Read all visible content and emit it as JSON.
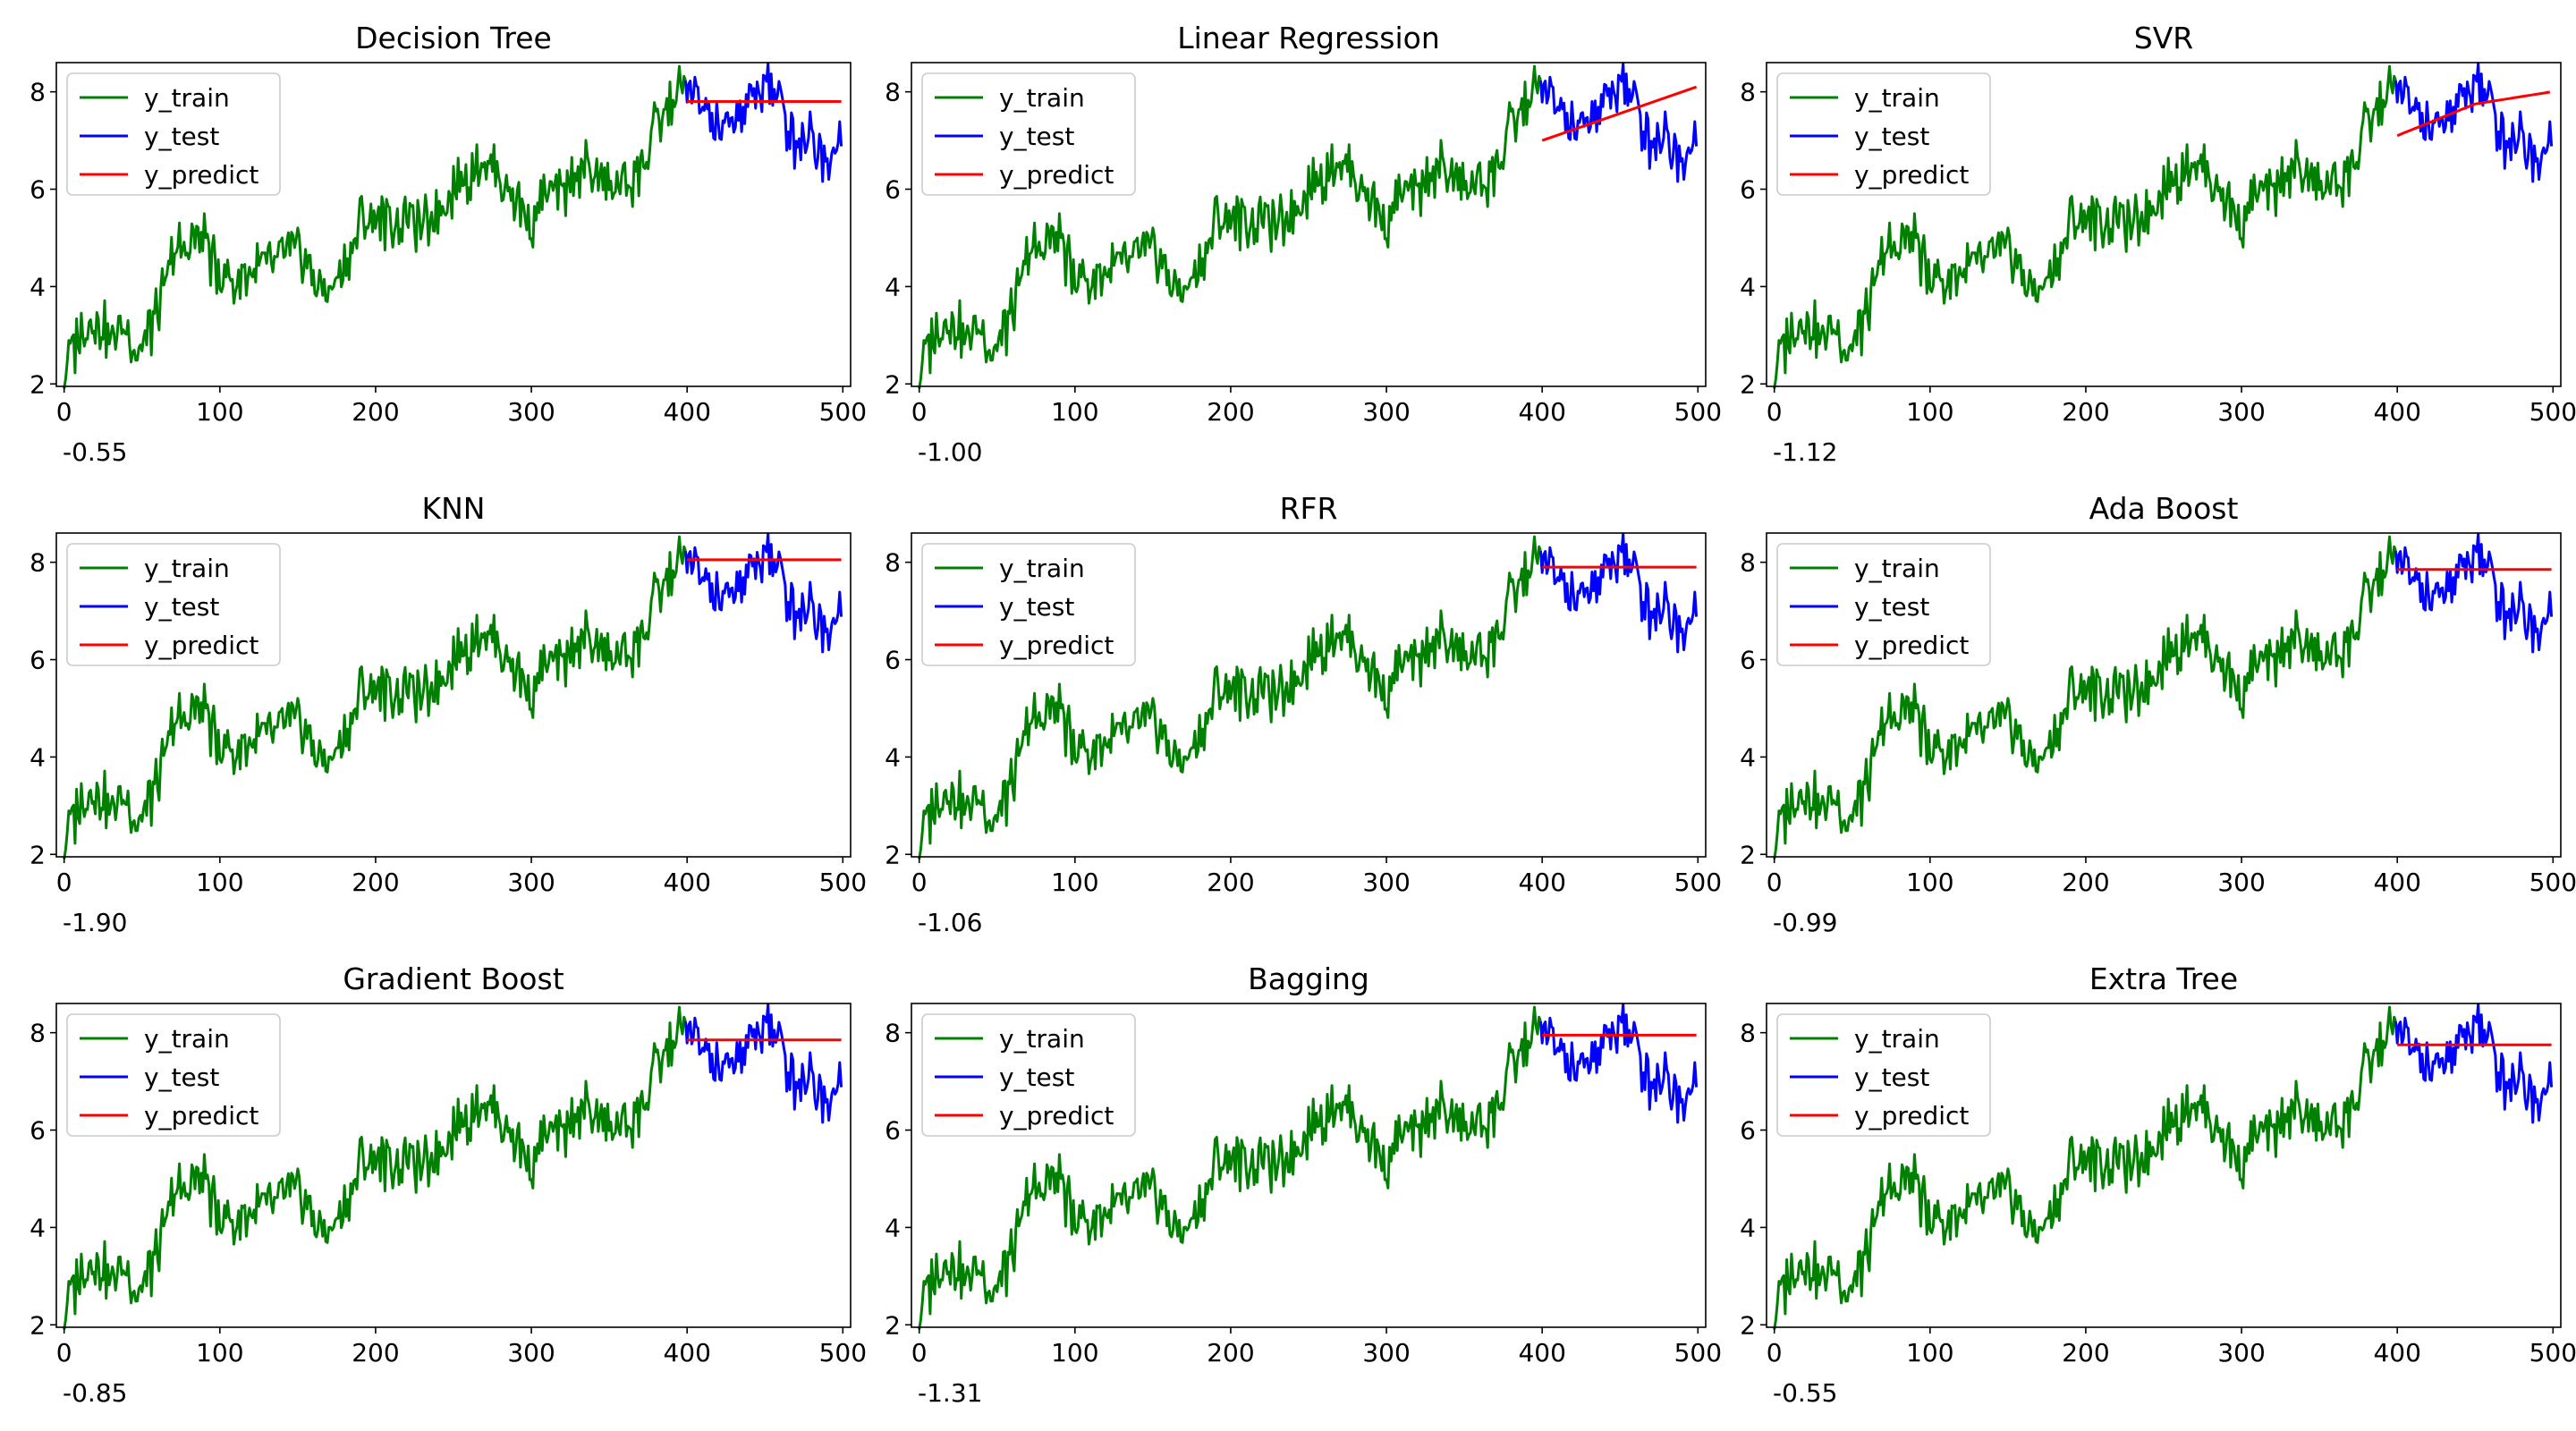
{
  "figure": {
    "series_colors": {
      "y_train": "#008000",
      "y_test": "#0000ff",
      "y_predict": "#ff0000"
    }
  },
  "chart_data": [
    {
      "type": "line",
      "title": "Decision Tree",
      "score": "-0.55",
      "xlim": [
        -5,
        505
      ],
      "ylim": [
        1.95,
        8.6
      ],
      "xticks": [
        0,
        100,
        200,
        300,
        400,
        500
      ],
      "yticks": [
        2,
        4,
        6,
        8
      ],
      "legend": {
        "placement": "upper-left",
        "entries": [
          "y_train",
          "y_test",
          "y_predict"
        ]
      },
      "grid": false,
      "series": [
        {
          "name": "y_train",
          "x_range": [
            0,
            399
          ],
          "description_points": "random walk"
        },
        {
          "name": "y_test",
          "x_range": [
            400,
            499
          ]
        },
        {
          "name": "y_predict",
          "x": [
            400,
            499
          ],
          "values": [
            7.8,
            7.8
          ]
        }
      ]
    },
    {
      "type": "line",
      "title": "Linear Regression",
      "score": "-1.00",
      "xlim": [
        -5,
        505
      ],
      "ylim": [
        1.95,
        8.6
      ],
      "xticks": [
        0,
        100,
        200,
        300,
        400,
        500
      ],
      "yticks": [
        2,
        4,
        6,
        8
      ],
      "legend": {
        "placement": "upper-left",
        "entries": [
          "y_train",
          "y_test",
          "y_predict"
        ]
      },
      "grid": false,
      "series": [
        {
          "name": "y_train",
          "x_range": [
            0,
            399
          ]
        },
        {
          "name": "y_test",
          "x_range": [
            400,
            499
          ]
        },
        {
          "name": "y_predict",
          "x": [
            400,
            499
          ],
          "values": [
            7.0,
            8.1
          ]
        }
      ]
    },
    {
      "type": "line",
      "title": "SVR",
      "score": "-1.12",
      "xlim": [
        -5,
        505
      ],
      "ylim": [
        1.95,
        8.6
      ],
      "xticks": [
        0,
        100,
        200,
        300,
        400,
        500
      ],
      "yticks": [
        2,
        4,
        6,
        8
      ],
      "legend": {
        "placement": "upper-left",
        "entries": [
          "y_train",
          "y_test",
          "y_predict"
        ]
      },
      "grid": false,
      "series": [
        {
          "name": "y_train",
          "x_range": [
            0,
            399
          ]
        },
        {
          "name": "y_test",
          "x_range": [
            400,
            499
          ]
        },
        {
          "name": "y_predict",
          "x": [
            400,
            450,
            499
          ],
          "values": [
            7.1,
            7.75,
            8.0
          ]
        }
      ]
    },
    {
      "type": "line",
      "title": "KNN",
      "score": "-1.90",
      "xlim": [
        -5,
        505
      ],
      "ylim": [
        1.95,
        8.6
      ],
      "xticks": [
        0,
        100,
        200,
        300,
        400,
        500
      ],
      "yticks": [
        2,
        4,
        6,
        8
      ],
      "legend": {
        "placement": "upper-left",
        "entries": [
          "y_train",
          "y_test",
          "y_predict"
        ]
      },
      "grid": false,
      "series": [
        {
          "name": "y_train",
          "x_range": [
            0,
            399
          ]
        },
        {
          "name": "y_test",
          "x_range": [
            400,
            499
          ]
        },
        {
          "name": "y_predict",
          "x": [
            400,
            499
          ],
          "values": [
            8.05,
            8.05
          ]
        }
      ]
    },
    {
      "type": "line",
      "title": "RFR",
      "score": "-1.06",
      "xlim": [
        -5,
        505
      ],
      "ylim": [
        1.95,
        8.6
      ],
      "xticks": [
        0,
        100,
        200,
        300,
        400,
        500
      ],
      "yticks": [
        2,
        4,
        6,
        8
      ],
      "legend": {
        "placement": "upper-left",
        "entries": [
          "y_train",
          "y_test",
          "y_predict"
        ]
      },
      "grid": false,
      "series": [
        {
          "name": "y_train",
          "x_range": [
            0,
            399
          ]
        },
        {
          "name": "y_test",
          "x_range": [
            400,
            499
          ]
        },
        {
          "name": "y_predict",
          "x": [
            400,
            499
          ],
          "values": [
            7.9,
            7.9
          ]
        }
      ]
    },
    {
      "type": "line",
      "title": "Ada Boost",
      "score": "-0.99",
      "xlim": [
        -5,
        505
      ],
      "ylim": [
        1.95,
        8.6
      ],
      "xticks": [
        0,
        100,
        200,
        300,
        400,
        500
      ],
      "yticks": [
        2,
        4,
        6,
        8
      ],
      "legend": {
        "placement": "upper-left",
        "entries": [
          "y_train",
          "y_test",
          "y_predict"
        ]
      },
      "grid": false,
      "series": [
        {
          "name": "y_train",
          "x_range": [
            0,
            399
          ]
        },
        {
          "name": "y_test",
          "x_range": [
            400,
            499
          ]
        },
        {
          "name": "y_predict",
          "x": [
            400,
            499
          ],
          "values": [
            7.85,
            7.85
          ]
        }
      ]
    },
    {
      "type": "line",
      "title": "Gradient Boost",
      "score": "-0.85",
      "xlim": [
        -5,
        505
      ],
      "ylim": [
        1.95,
        8.6
      ],
      "xticks": [
        0,
        100,
        200,
        300,
        400,
        500
      ],
      "yticks": [
        2,
        4,
        6,
        8
      ],
      "legend": {
        "placement": "upper-left",
        "entries": [
          "y_train",
          "y_test",
          "y_predict"
        ]
      },
      "grid": false,
      "series": [
        {
          "name": "y_train",
          "x_range": [
            0,
            399
          ]
        },
        {
          "name": "y_test",
          "x_range": [
            400,
            499
          ]
        },
        {
          "name": "y_predict",
          "x": [
            400,
            499
          ],
          "values": [
            7.85,
            7.85
          ]
        }
      ]
    },
    {
      "type": "line",
      "title": "Bagging",
      "score": "-1.31",
      "xlim": [
        -5,
        505
      ],
      "ylim": [
        1.95,
        8.6
      ],
      "xticks": [
        0,
        100,
        200,
        300,
        400,
        500
      ],
      "yticks": [
        2,
        4,
        6,
        8
      ],
      "legend": {
        "placement": "upper-left",
        "entries": [
          "y_train",
          "y_test",
          "y_predict"
        ]
      },
      "grid": false,
      "series": [
        {
          "name": "y_train",
          "x_range": [
            0,
            399
          ]
        },
        {
          "name": "y_test",
          "x_range": [
            400,
            499
          ]
        },
        {
          "name": "y_predict",
          "x": [
            400,
            499
          ],
          "values": [
            7.95,
            7.95
          ]
        }
      ]
    },
    {
      "type": "line",
      "title": "Extra Tree",
      "score": "-0.55",
      "xlim": [
        -5,
        505
      ],
      "ylim": [
        1.95,
        8.6
      ],
      "xticks": [
        0,
        100,
        200,
        300,
        400,
        500
      ],
      "yticks": [
        2,
        4,
        6,
        8
      ],
      "legend": {
        "placement": "upper-left",
        "entries": [
          "y_train",
          "y_test",
          "y_predict"
        ]
      },
      "grid": false,
      "series": [
        {
          "name": "y_train",
          "x_range": [
            0,
            399
          ]
        },
        {
          "name": "y_test",
          "x_range": [
            400,
            499
          ]
        },
        {
          "name": "y_predict",
          "x": [
            400,
            499
          ],
          "values": [
            7.75,
            7.75
          ]
        }
      ]
    }
  ],
  "shared_series": {
    "x": [
      0,
      10,
      20,
      30,
      40,
      50,
      60,
      70,
      80,
      90,
      100,
      110,
      120,
      130,
      140,
      150,
      160,
      170,
      180,
      190,
      200,
      210,
      220,
      230,
      240,
      250,
      260,
      270,
      280,
      290,
      300,
      310,
      320,
      330,
      340,
      350,
      360,
      370,
      380,
      390,
      400,
      410,
      420,
      430,
      440,
      450,
      460,
      470,
      480,
      490,
      499
    ],
    "y": [
      2.3,
      3.0,
      3.3,
      3.0,
      3.2,
      2.7,
      3.5,
      4.6,
      5.0,
      4.9,
      4.3,
      4.1,
      4.3,
      4.4,
      4.6,
      4.7,
      4.2,
      3.8,
      4.4,
      5.3,
      5.5,
      5.3,
      5.4,
      5.2,
      5.6,
      6.0,
      6.3,
      6.6,
      6.3,
      5.8,
      5.3,
      5.9,
      5.9,
      6.4,
      6.3,
      6.0,
      6.2,
      6.4,
      7.2,
      7.8,
      8.2,
      7.6,
      7.2,
      7.4,
      7.8,
      8.3,
      7.7,
      7.0,
      7.2,
      6.6,
      7.4
    ]
  }
}
